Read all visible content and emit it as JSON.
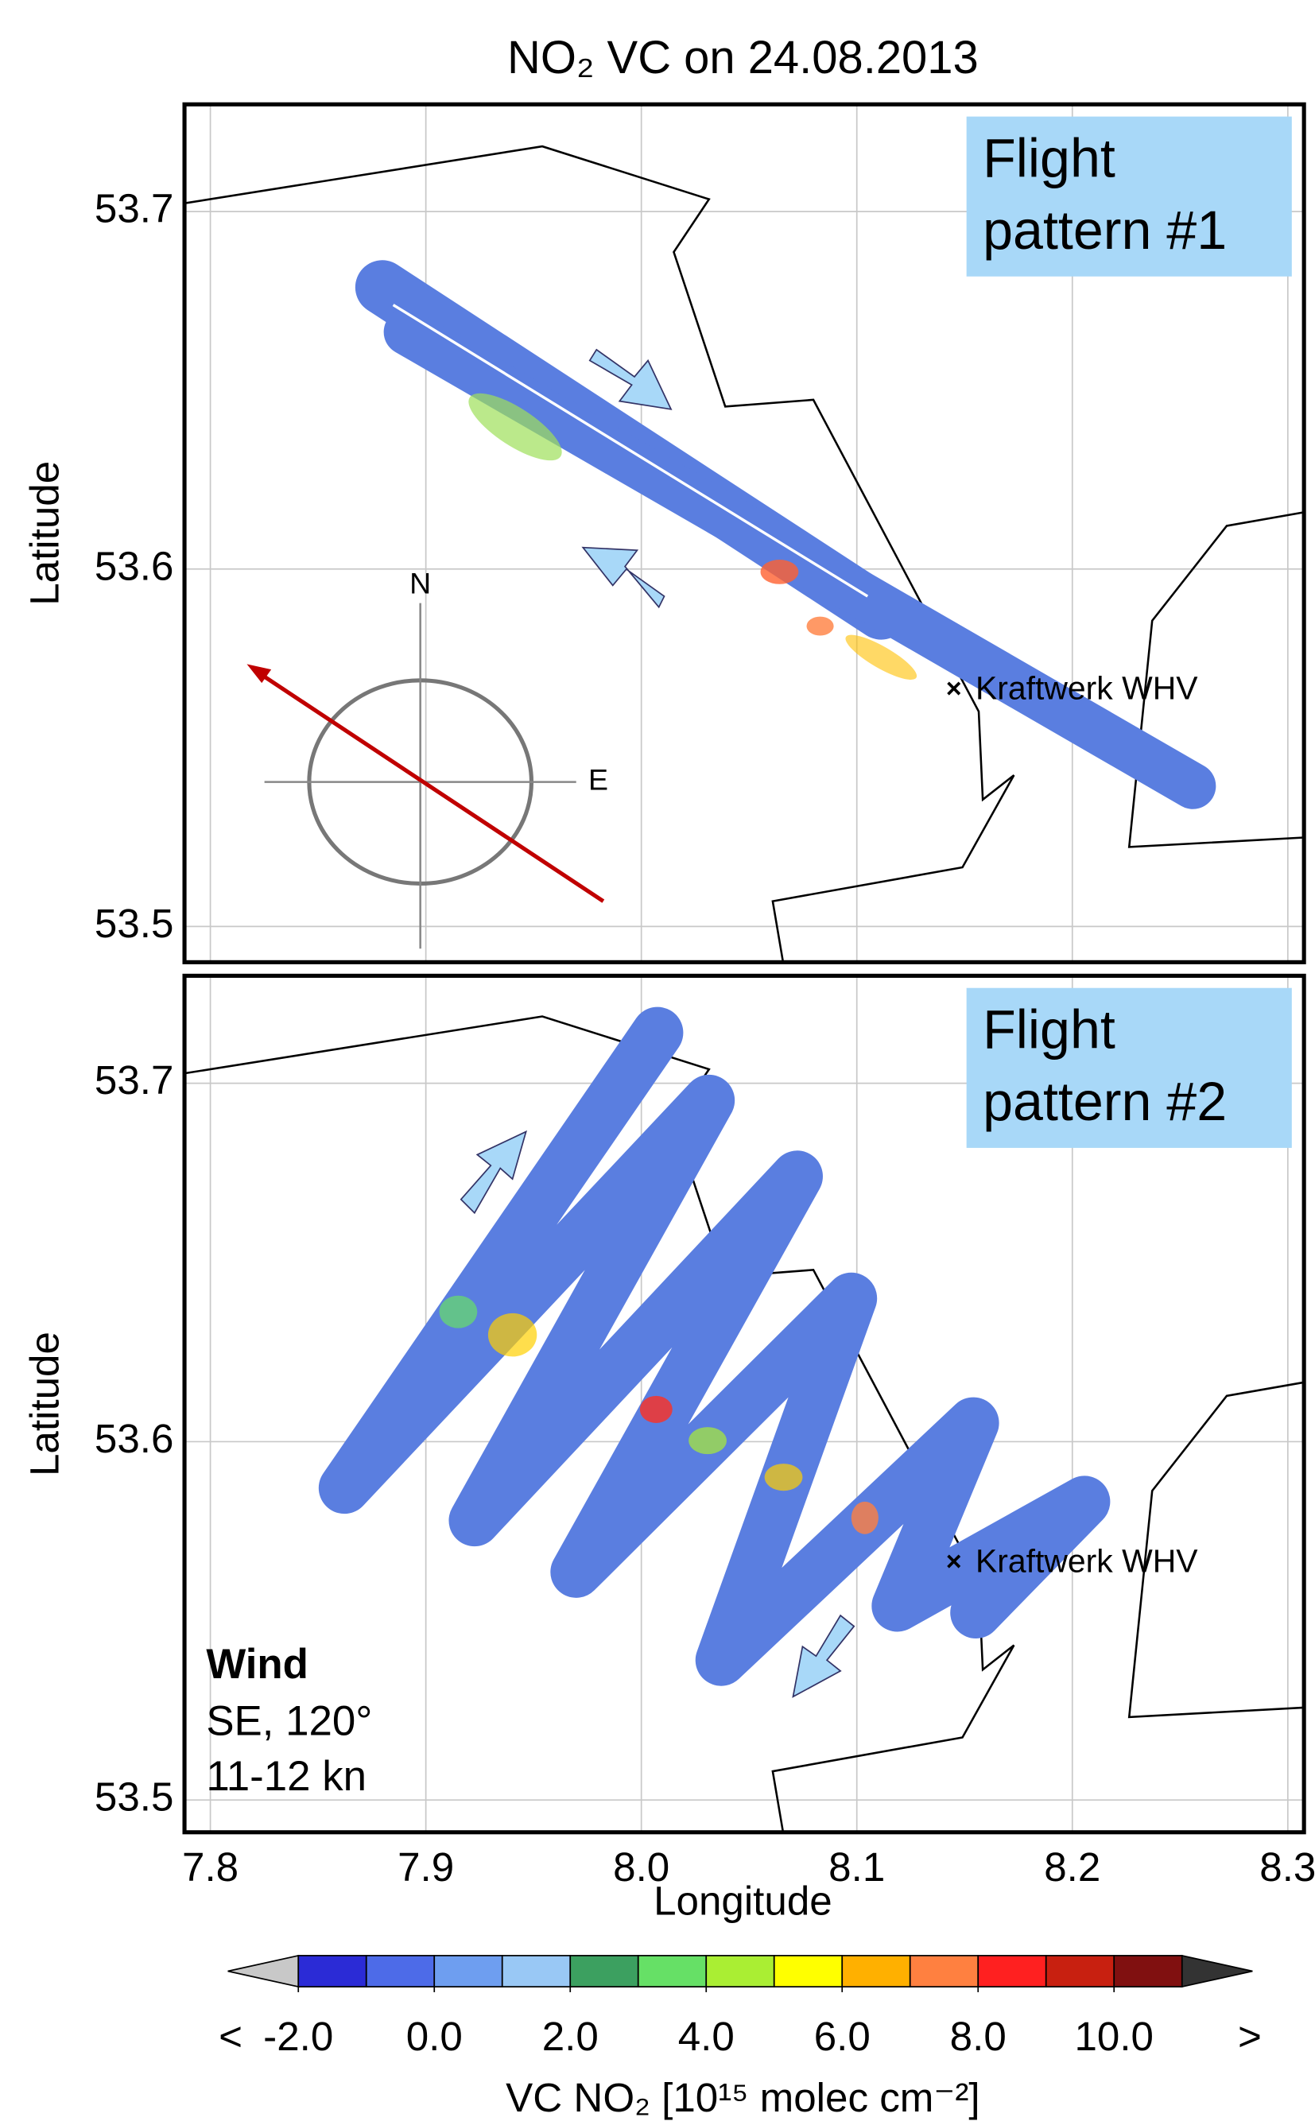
{
  "title": "NO₂ VC on 24.08.2013",
  "chart_data": [
    {
      "type": "map",
      "ylabel": "Latitude",
      "xlim": [
        7.788,
        8.3075
      ],
      "ylim": [
        53.49,
        53.73
      ],
      "xticks": [
        7.8,
        7.9,
        8,
        8.1,
        8.2,
        8.3
      ],
      "yticks": [
        53.5,
        53.6,
        53.7
      ],
      "grid": true,
      "box_lines": [
        "Flight",
        "pattern #1"
      ],
      "box_color": "#a8d8f8",
      "marker": {
        "label": "Kraftwerk WHV",
        "lon": 8.145,
        "lat": 53.566
      },
      "compass": {
        "north": "N",
        "east": "E"
      }
    },
    {
      "type": "map",
      "ylabel": "Latitude",
      "xlabel": "Longitude",
      "xlim": [
        7.788,
        8.3075
      ],
      "ylim": [
        53.491,
        53.73
      ],
      "xticks": [
        7.8,
        7.9,
        {
          "value": 8,
          "label": "8.0"
        },
        8.1,
        8.2,
        8.3
      ],
      "yticks": [
        53.5,
        53.6,
        53.7
      ],
      "grid": true,
      "box_lines": [
        "Flight",
        "pattern #2"
      ],
      "box_color": "#a8d8f8",
      "marker": {
        "label": "Kraftwerk WHV",
        "lon": 8.145,
        "lat": 53.566
      },
      "wind": {
        "heading": "Wind",
        "lines": [
          "SE, 120°",
          "11-12 kn"
        ],
        "color": "#c00000"
      }
    },
    {
      "type": "colorbar",
      "label": "VC NO₂ [10¹⁵ molec cm⁻²]",
      "boundaries": [
        -2,
        -1,
        0,
        1,
        2,
        3,
        4,
        5,
        6,
        7,
        8,
        9,
        10,
        11
      ],
      "colors": [
        "#2b2bd6",
        "#4d6be8",
        "#6e9ef0",
        "#99c8f5",
        "#3ca060",
        "#66e066",
        "#aaee33",
        "#ffff00",
        "#ffb000",
        "#ff8040",
        "#ff2020",
        "#c82010",
        "#801010"
      ],
      "under_color": "#c8c8c8",
      "over_color": "#333333",
      "under_label": "<",
      "over_label": ">",
      "ticks": [
        {
          "value": -2,
          "label": "-2.0"
        },
        {
          "value": 0,
          "label": "0.0"
        },
        {
          "value": 2,
          "label": "2.0"
        },
        {
          "value": 4,
          "label": "4.0"
        },
        {
          "value": 6,
          "label": "6.0"
        },
        {
          "value": 8,
          "label": "8.0"
        },
        {
          "value": 10,
          "label": "10.0"
        }
      ]
    }
  ]
}
